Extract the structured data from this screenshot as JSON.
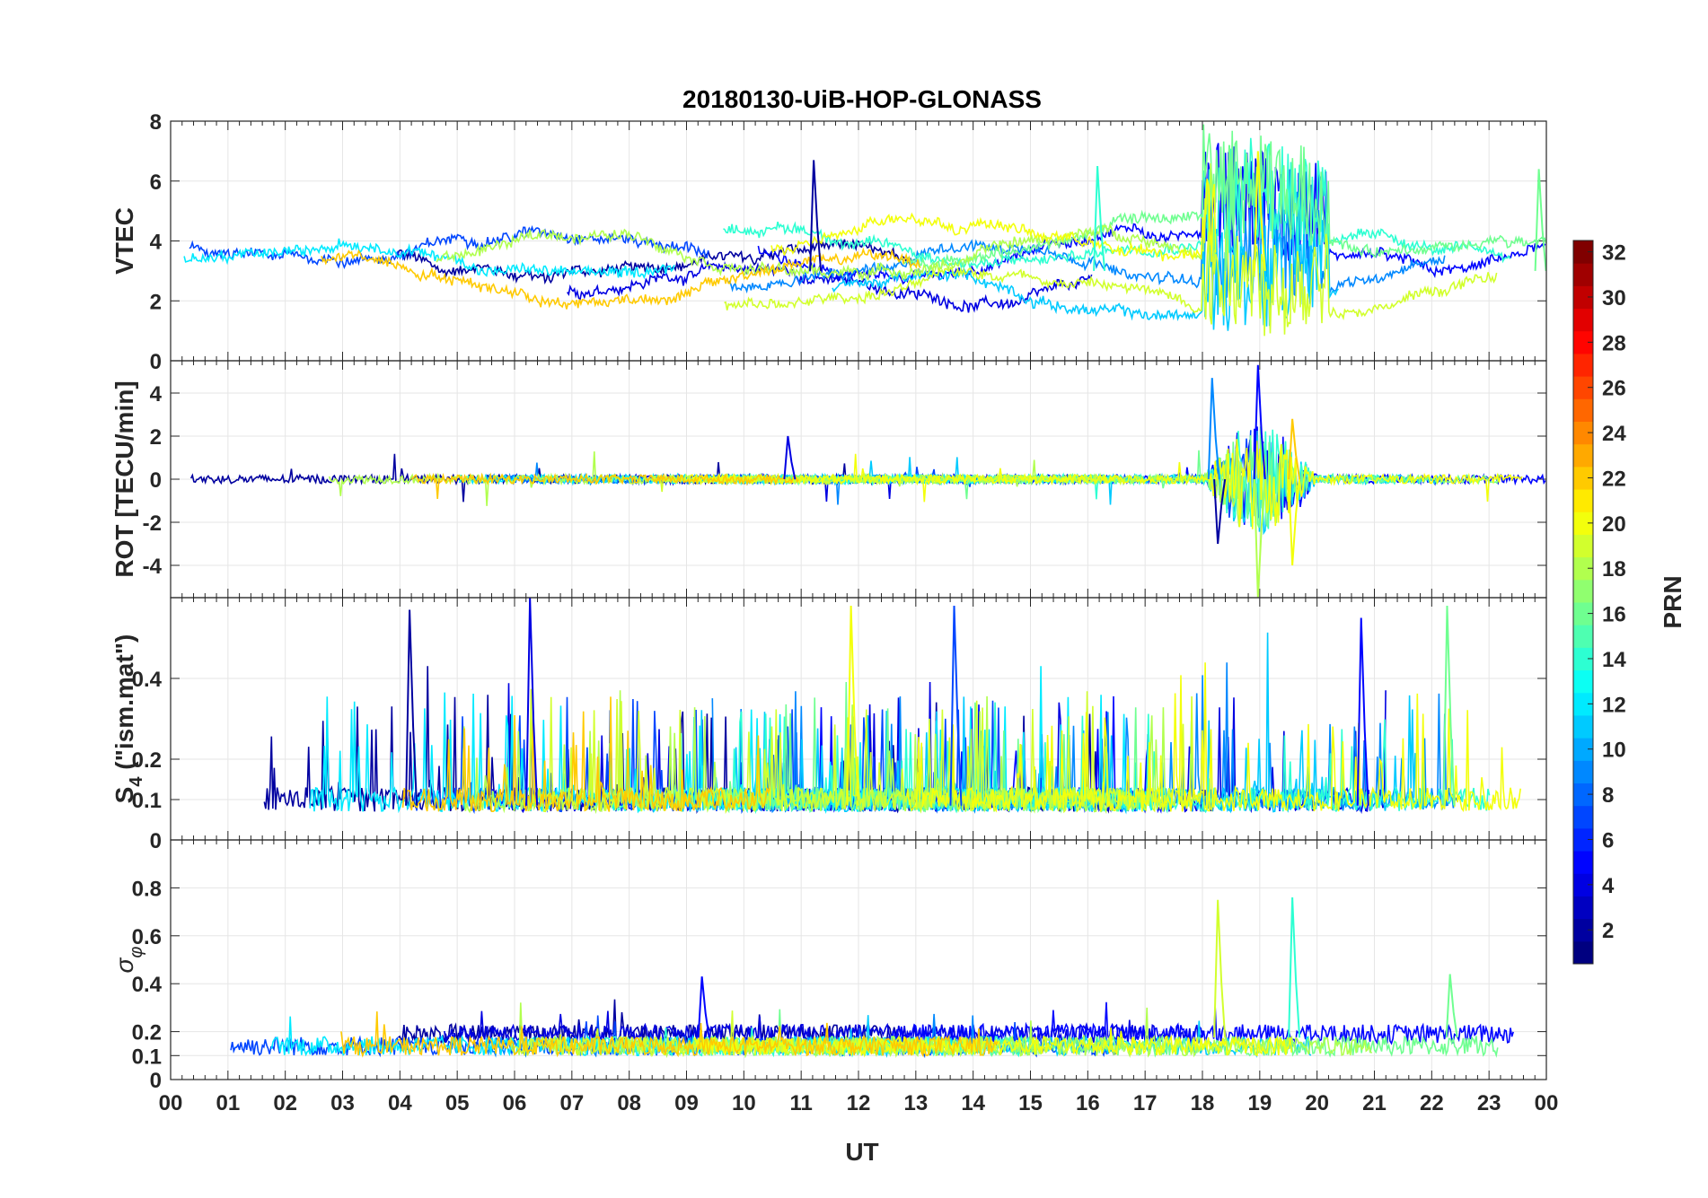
{
  "chart_data": {
    "type": "line",
    "title": "20180130-UiB-HOP-GLONASS",
    "xlabel": "UT",
    "x_tick_labels": [
      "00",
      "01",
      "02",
      "03",
      "04",
      "05",
      "06",
      "07",
      "08",
      "09",
      "10",
      "11",
      "12",
      "13",
      "14",
      "15",
      "16",
      "17",
      "18",
      "19",
      "20",
      "21",
      "22",
      "23",
      "00"
    ],
    "xlim": [
      0,
      24
    ],
    "grid": true,
    "colorbar": {
      "label": "PRN",
      "range": [
        1,
        32
      ],
      "tick_labels": [
        "2",
        "4",
        "6",
        "8",
        "10",
        "12",
        "14",
        "16",
        "18",
        "20",
        "22",
        "24",
        "26",
        "28",
        "30",
        "32"
      ],
      "colormap": "jet"
    },
    "panels": [
      {
        "ylabel": "VTEC",
        "ylim": [
          0,
          8
        ],
        "y_tick_labels": [
          "0",
          "2",
          "4",
          "6",
          "8"
        ],
        "baseline_range": [
          1.5,
          4.5
        ],
        "features": [
          {
            "x": 11.25,
            "y": 6.7,
            "label": "peak"
          },
          {
            "x": 18.5,
            "y": 7.2,
            "label": "peak"
          },
          {
            "x": 19.0,
            "y": 7.0,
            "label": "peak"
          },
          {
            "x": 16.2,
            "y": 6.5,
            "label": "high"
          },
          {
            "x": 23.9,
            "y": 6.4,
            "label": "end peak"
          }
        ]
      },
      {
        "ylabel": "ROT [TECU/min]",
        "ylim": [
          -5.5,
          5.5
        ],
        "y_tick_labels": [
          "-4",
          "-2",
          "0",
          "2",
          "4"
        ],
        "baseline_noise": 0.3,
        "features": [
          {
            "x": 19.0,
            "y": 5.3,
            "label": "max spike"
          },
          {
            "x": 19.0,
            "y": -5.5,
            "label": "min spike"
          },
          {
            "x": 18.2,
            "y": 4.7,
            "label": "spike"
          },
          {
            "x": 18.3,
            "y": -3.0,
            "label": "spike"
          },
          {
            "x": 19.6,
            "y": 2.8,
            "label": "spike"
          },
          {
            "x": 19.6,
            "y": -4.0,
            "label": "spike"
          },
          {
            "x": 10.8,
            "y": 2.0,
            "label": "spike"
          }
        ]
      },
      {
        "ylabel": "S4 (\"ism.mat\")",
        "ylabel_main": "S",
        "ylabel_sub": "4",
        "ylabel_rest": " (\"ism.mat\")",
        "ylim": [
          0,
          0.6
        ],
        "y_tick_labels": [
          "0",
          "0.1",
          "0.2",
          "0.4"
        ],
        "baseline_range": [
          0.05,
          0.12
        ],
        "features": [
          {
            "x": 6.3,
            "y": 0.6,
            "label": "peak"
          },
          {
            "x": 11.9,
            "y": 0.58,
            "label": "peak"
          },
          {
            "x": 13.7,
            "y": 0.58,
            "label": "peak"
          },
          {
            "x": 4.2,
            "y": 0.57,
            "label": "peak"
          },
          {
            "x": 22.3,
            "y": 0.58,
            "label": "peak"
          },
          {
            "x": 20.8,
            "y": 0.55,
            "label": "peak"
          }
        ]
      },
      {
        "ylabel": "σφ",
        "ylabel_main": "σ",
        "ylabel_sub": "φ",
        "ylim": [
          0,
          1
        ],
        "y_tick_labels": [
          "0",
          "0.1",
          "0.2",
          "0.4",
          "0.6",
          "0.8"
        ],
        "baseline_range": [
          0.1,
          0.25
        ],
        "features": [
          {
            "x": 18.3,
            "y": 0.75,
            "label": "spike"
          },
          {
            "x": 19.6,
            "y": 0.76,
            "label": "spike"
          },
          {
            "x": 9.3,
            "y": 0.43,
            "label": "spike"
          },
          {
            "x": 22.35,
            "y": 0.44,
            "label": "spike"
          }
        ]
      }
    ]
  }
}
